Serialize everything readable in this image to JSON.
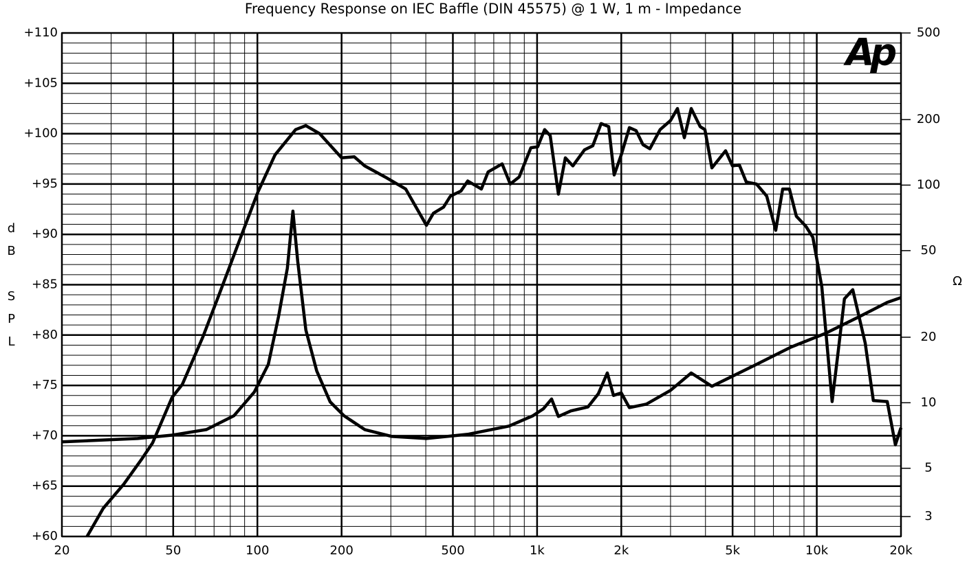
{
  "chart_data": {
    "type": "line",
    "title": "Frequency Response on IEC Baffle (DIN 45575) @ 1 W, 1 m - Impedance",
    "y_label": "dB SPL",
    "y2_label": "Ω",
    "logo": "Ap",
    "xscale": "log",
    "y2scale": "log",
    "xlim": [
      20,
      20000
    ],
    "ylim": [
      60,
      110
    ],
    "y2lim": [
      2.43,
      500
    ],
    "xticks": [
      20,
      50,
      100,
      200,
      500,
      {
        "value": 1000,
        "label": "1k"
      },
      {
        "value": 2000,
        "label": "2k"
      },
      {
        "value": 5000,
        "label": "5k"
      },
      {
        "value": 10000,
        "label": "10k"
      },
      {
        "value": 20000,
        "label": "20k"
      }
    ],
    "yticks": [
      {
        "value": 60,
        "label": "+60"
      },
      {
        "value": 65,
        "label": "+65"
      },
      {
        "value": 70,
        "label": "+70"
      },
      {
        "value": 75,
        "label": "+75"
      },
      {
        "value": 80,
        "label": "+80"
      },
      {
        "value": 85,
        "label": "+85"
      },
      {
        "value": 90,
        "label": "+90"
      },
      {
        "value": 95,
        "label": "+95"
      },
      {
        "value": 100,
        "label": "+100"
      },
      {
        "value": 105,
        "label": "+105"
      },
      {
        "value": 110,
        "label": "+110"
      }
    ],
    "y2ticks": [
      3,
      5,
      10,
      20,
      50,
      100,
      200,
      500
    ],
    "grid": true,
    "xgrid": [
      30,
      40,
      60,
      70,
      80,
      90,
      300,
      400,
      600,
      700,
      800,
      900,
      3000,
      4000,
      6000,
      7000,
      8000,
      9000
    ],
    "ygrid": [
      61,
      62,
      63,
      64,
      66,
      67,
      68,
      69,
      71,
      72,
      73,
      74,
      76,
      77,
      78,
      79,
      81,
      82,
      83,
      84,
      86,
      87,
      88,
      89,
      91,
      92,
      93,
      94,
      96,
      97,
      98,
      99,
      101,
      102,
      103,
      104,
      106,
      107,
      108,
      109
    ],
    "series": [
      {
        "color": "#000000",
        "axis": "y",
        "x": [
          24.6,
          28.1,
          33.3,
          38.4,
          42.2,
          49.5,
          53.9,
          63.8,
          73.6,
          87.1,
          100.4,
          115.6,
          137,
          149,
          167,
          200,
          222,
          242,
          286,
          339,
          402,
          426,
          463,
          490,
          534,
          565,
          632,
          668,
          750,
          802,
          863,
          950,
          1005,
          1064,
          1114,
          1192,
          1262,
          1342,
          1478,
          1582,
          1694,
          1803,
          1886,
          2000,
          2138,
          2260,
          2392,
          2530,
          2754,
          3000,
          3176,
          3360,
          3556,
          3828,
          3980,
          4218,
          4721,
          4992,
          5284,
          5596,
          6088,
          6624,
          7131,
          7551,
          7985,
          8453,
          9144,
          9683,
          10424,
          11350,
          11860,
          12560,
          13450,
          14900,
          15930,
          17860,
          19100,
          20000
        ],
        "values": [
          60,
          62.8,
          65.2,
          67.6,
          69.3,
          73.8,
          75.1,
          79.8,
          84.3,
          89.7,
          94.2,
          97.9,
          100.4,
          100.8,
          100,
          97.6,
          97.7,
          96.8,
          95.7,
          94.5,
          90.9,
          92.1,
          92.7,
          93.8,
          94.3,
          95.3,
          94.5,
          96.2,
          97,
          95,
          95.7,
          98.6,
          98.7,
          100.4,
          99.8,
          94,
          97.6,
          96.8,
          98.4,
          98.8,
          101,
          100.7,
          95.9,
          97.9,
          100.6,
          100.3,
          98.9,
          98.5,
          100.4,
          101.3,
          102.5,
          99.6,
          102.5,
          100.7,
          100.4,
          96.6,
          98.3,
          96.8,
          96.9,
          95.2,
          95,
          93.8,
          90.4,
          94.5,
          94.5,
          91.8,
          90.8,
          89.7,
          84.8,
          73.4,
          77.8,
          83.6,
          84.5,
          79.2,
          73.5,
          73.4,
          69.1,
          70.8
        ]
      },
      {
        "color": "#000000",
        "axis": "y2",
        "x": [
          20,
          37.3,
          49.5,
          65.7,
          82.4,
          97.5,
          109.4,
          119,
          128,
          134,
          139.4,
          149,
          163,
          182,
          204,
          242,
          303,
          402,
          565,
          793,
          966,
          1052,
          1127,
          1192,
          1321,
          1520,
          1656,
          1783,
          1876,
          2000,
          2138,
          2460,
          3000,
          3556,
          4218,
          4854,
          6088,
          8077,
          10714,
          14220,
          17860,
          20000
        ],
        "values": [
          6.61,
          6.85,
          7.1,
          7.53,
          8.71,
          11.2,
          15,
          24.9,
          41.5,
          75.9,
          44.6,
          21.6,
          14,
          10.1,
          8.71,
          7.53,
          7,
          6.85,
          7.16,
          7.81,
          8.71,
          9.37,
          10.4,
          8.65,
          9.17,
          9.57,
          11,
          13.7,
          10.8,
          11.1,
          9.5,
          9.86,
          11.4,
          13.7,
          11.9,
          13,
          15,
          18,
          20.8,
          24.9,
          28.9,
          30.4
        ]
      }
    ]
  }
}
